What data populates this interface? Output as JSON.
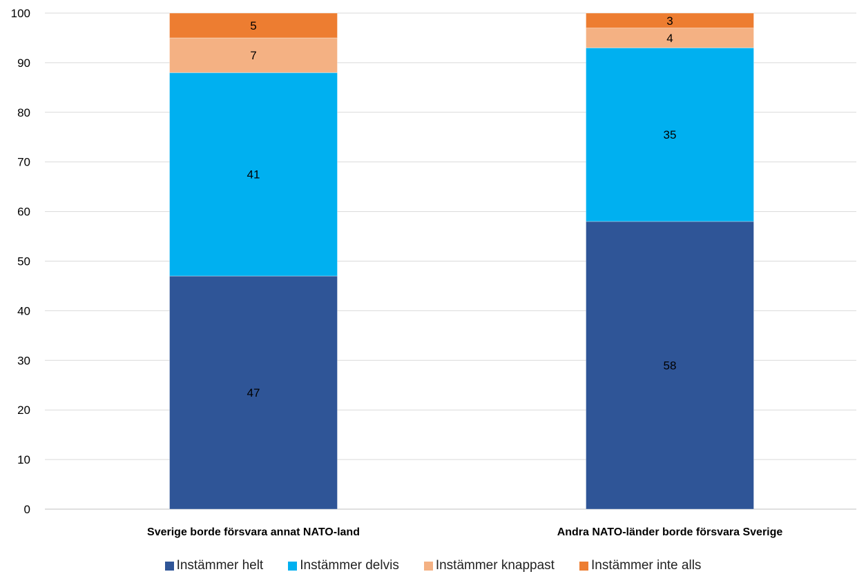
{
  "chart_data": {
    "type": "bar",
    "stacked": true,
    "categories": [
      "Sverige borde försvara annat NATO-land",
      "Andra NATO-länder borde försvara Sverige"
    ],
    "series": [
      {
        "name": "Instämmer helt",
        "values": [
          47,
          58
        ],
        "color": "#2F5597"
      },
      {
        "name": "Instämmer delvis",
        "values": [
          41,
          35
        ],
        "color": "#00B0F0"
      },
      {
        "name": "Instämmer knappast",
        "values": [
          7,
          4
        ],
        "color": "#F4B183"
      },
      {
        "name": "Instämmer inte alls",
        "values": [
          5,
          3
        ],
        "color": "#ED7D31"
      }
    ],
    "ylim": [
      0,
      100
    ],
    "yticks": [
      0,
      10,
      20,
      30,
      40,
      50,
      60,
      70,
      80,
      90,
      100
    ],
    "grid": true,
    "legend_position": "bottom"
  }
}
